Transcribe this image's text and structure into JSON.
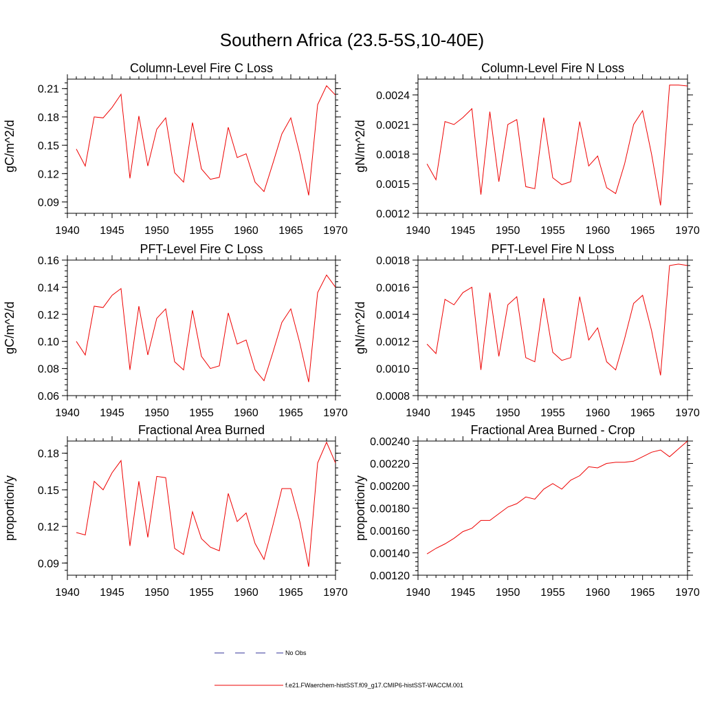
{
  "figure": {
    "title": "Southern Africa (23.5-5S,10-40E)",
    "legend": [
      {
        "label": "No Obs",
        "color": "#333399",
        "style": "dashed"
      },
      {
        "label": "f.e21.FWaerchem-histSST.f09_g17.CMIP6-histSST-WACCM.001",
        "color": "#ee0000",
        "style": "solid"
      }
    ]
  },
  "chart_data": [
    {
      "type": "line",
      "title": "Column-Level Fire C Loss",
      "xlabel": "",
      "ylabel": "gC/m^2/d",
      "xlim": [
        1940,
        1970
      ],
      "ylim": [
        0.078,
        0.22
      ],
      "xticks": [
        1940,
        1945,
        1950,
        1955,
        1960,
        1965,
        1970
      ],
      "xtick_labels": [
        "1940",
        "1945",
        "1950",
        "1955",
        "1960",
        "1965",
        "1970"
      ],
      "yticks": [
        0.09,
        0.12,
        0.15,
        0.18,
        0.21
      ],
      "ytick_labels": [
        "0.09",
        "0.12",
        "0.15",
        "0.18",
        "0.21"
      ],
      "series": [
        {
          "color": "#ee0000",
          "x": [
            1941,
            1942,
            1943,
            1944,
            1945,
            1946,
            1947,
            1948,
            1949,
            1950,
            1951,
            1952,
            1953,
            1954,
            1955,
            1956,
            1957,
            1958,
            1959,
            1960,
            1961,
            1962,
            1963,
            1964,
            1965,
            1966,
            1967,
            1968,
            1969,
            1970
          ],
          "y": [
            0.146,
            0.128,
            0.18,
            0.179,
            0.19,
            0.204,
            0.115,
            0.181,
            0.128,
            0.167,
            0.179,
            0.121,
            0.111,
            0.174,
            0.125,
            0.114,
            0.116,
            0.169,
            0.137,
            0.141,
            0.111,
            0.101,
            0.131,
            0.162,
            0.179,
            0.141,
            0.097,
            0.193,
            0.213,
            0.203
          ]
        }
      ]
    },
    {
      "type": "line",
      "title": "Column-Level Fire N Loss",
      "xlabel": "",
      "ylabel": "gN/m^2/d",
      "xlim": [
        1940,
        1970
      ],
      "ylim": [
        0.0012,
        0.00256
      ],
      "xticks": [
        1940,
        1945,
        1950,
        1955,
        1960,
        1965,
        1970
      ],
      "xtick_labels": [
        "1940",
        "1945",
        "1950",
        "1955",
        "1960",
        "1965",
        "1970"
      ],
      "yticks": [
        0.0012,
        0.0015,
        0.0018,
        0.0021,
        0.0024
      ],
      "ytick_labels": [
        "0.0012",
        "0.0015",
        "0.0018",
        "0.0021",
        "0.0024"
      ],
      "series": [
        {
          "color": "#ee0000",
          "x": [
            1941,
            1942,
            1943,
            1944,
            1945,
            1946,
            1947,
            1948,
            1949,
            1950,
            1951,
            1952,
            1953,
            1954,
            1955,
            1956,
            1957,
            1958,
            1959,
            1960,
            1961,
            1962,
            1963,
            1964,
            1965,
            1966,
            1967,
            1968,
            1969,
            1970
          ],
          "y": [
            0.0017,
            0.00154,
            0.00213,
            0.0021,
            0.00217,
            0.00226,
            0.00139,
            0.00223,
            0.00152,
            0.0021,
            0.00215,
            0.00147,
            0.00145,
            0.00217,
            0.00156,
            0.00149,
            0.00152,
            0.00213,
            0.00168,
            0.00178,
            0.00146,
            0.0014,
            0.0017,
            0.0021,
            0.00224,
            0.0018,
            0.00128,
            0.0025,
            0.0025,
            0.00249
          ]
        }
      ]
    },
    {
      "type": "line",
      "title": "PFT-Level Fire C Loss",
      "xlabel": "",
      "ylabel": "gC/m^2/d",
      "xlim": [
        1940,
        1970
      ],
      "ylim": [
        0.06,
        0.16
      ],
      "xticks": [
        1940,
        1945,
        1950,
        1955,
        1960,
        1965,
        1970
      ],
      "xtick_labels": [
        "1940",
        "1945",
        "1950",
        "1955",
        "1960",
        "1965",
        "1970"
      ],
      "yticks": [
        0.06,
        0.08,
        0.1,
        0.12,
        0.14,
        0.16
      ],
      "ytick_labels": [
        "0.06",
        "0.08",
        "0.10",
        "0.12",
        "0.14",
        "0.16"
      ],
      "series": [
        {
          "color": "#ee0000",
          "x": [
            1941,
            1942,
            1943,
            1944,
            1945,
            1946,
            1947,
            1948,
            1949,
            1950,
            1951,
            1952,
            1953,
            1954,
            1955,
            1956,
            1957,
            1958,
            1959,
            1960,
            1961,
            1962,
            1963,
            1964,
            1965,
            1966,
            1967,
            1968,
            1969,
            1970
          ],
          "y": [
            0.1,
            0.09,
            0.126,
            0.125,
            0.134,
            0.139,
            0.079,
            0.126,
            0.09,
            0.117,
            0.124,
            0.085,
            0.079,
            0.123,
            0.089,
            0.08,
            0.082,
            0.121,
            0.098,
            0.101,
            0.079,
            0.071,
            0.092,
            0.114,
            0.124,
            0.099,
            0.07,
            0.136,
            0.149,
            0.14
          ]
        }
      ]
    },
    {
      "type": "line",
      "title": "PFT-Level Fire N Loss",
      "xlabel": "",
      "ylabel": "gN/m^2/d",
      "xlim": [
        1940,
        1970
      ],
      "ylim": [
        0.0008,
        0.0018
      ],
      "xticks": [
        1940,
        1945,
        1950,
        1955,
        1960,
        1965,
        1970
      ],
      "xtick_labels": [
        "1940",
        "1945",
        "1950",
        "1955",
        "1960",
        "1965",
        "1970"
      ],
      "yticks": [
        0.0008,
        0.001,
        0.0012,
        0.0014,
        0.0016,
        0.0018
      ],
      "ytick_labels": [
        "0.0008",
        "0.0010",
        "0.0012",
        "0.0014",
        "0.0016",
        "0.0018"
      ],
      "series": [
        {
          "color": "#ee0000",
          "x": [
            1941,
            1942,
            1943,
            1944,
            1945,
            1946,
            1947,
            1948,
            1949,
            1950,
            1951,
            1952,
            1953,
            1954,
            1955,
            1956,
            1957,
            1958,
            1959,
            1960,
            1961,
            1962,
            1963,
            1964,
            1965,
            1966,
            1967,
            1968,
            1969,
            1970
          ],
          "y": [
            0.00118,
            0.00111,
            0.00151,
            0.00147,
            0.00156,
            0.0016,
            0.00099,
            0.00156,
            0.00109,
            0.00147,
            0.00153,
            0.00108,
            0.00105,
            0.00152,
            0.00112,
            0.00106,
            0.00108,
            0.00153,
            0.00121,
            0.0013,
            0.00105,
            0.00099,
            0.00122,
            0.00148,
            0.00154,
            0.00128,
            0.00095,
            0.00176,
            0.00177,
            0.00176
          ]
        }
      ]
    },
    {
      "type": "line",
      "title": "Fractional Area Burned",
      "xlabel": "",
      "ylabel": "proportion/y",
      "xlim": [
        1940,
        1970
      ],
      "ylim": [
        0.08,
        0.19
      ],
      "xticks": [
        1940,
        1945,
        1950,
        1955,
        1960,
        1965,
        1970
      ],
      "xtick_labels": [
        "1940",
        "1945",
        "1950",
        "1955",
        "1960",
        "1965",
        "1970"
      ],
      "yticks": [
        0.09,
        0.12,
        0.15,
        0.18
      ],
      "ytick_labels": [
        "0.09",
        "0.12",
        "0.15",
        "0.18"
      ],
      "series": [
        {
          "color": "#ee0000",
          "x": [
            1941,
            1942,
            1943,
            1944,
            1945,
            1946,
            1947,
            1948,
            1949,
            1950,
            1951,
            1952,
            1953,
            1954,
            1955,
            1956,
            1957,
            1958,
            1959,
            1960,
            1961,
            1962,
            1963,
            1964,
            1965,
            1966,
            1967,
            1968,
            1969,
            1970
          ],
          "y": [
            0.115,
            0.113,
            0.157,
            0.15,
            0.164,
            0.174,
            0.104,
            0.157,
            0.111,
            0.161,
            0.16,
            0.102,
            0.097,
            0.132,
            0.11,
            0.103,
            0.1,
            0.147,
            0.124,
            0.131,
            0.106,
            0.093,
            0.121,
            0.151,
            0.151,
            0.124,
            0.087,
            0.172,
            0.189,
            0.172
          ]
        }
      ]
    },
    {
      "type": "line",
      "title": "Fractional Area Burned - Crop",
      "xlabel": "",
      "ylabel": "proportion/y",
      "xlim": [
        1940,
        1970
      ],
      "ylim": [
        0.0012,
        0.0024
      ],
      "xticks": [
        1940,
        1945,
        1950,
        1955,
        1960,
        1965,
        1970
      ],
      "xtick_labels": [
        "1940",
        "1945",
        "1950",
        "1955",
        "1960",
        "1965",
        "1970"
      ],
      "yticks": [
        0.0012,
        0.0014,
        0.0016,
        0.0018,
        0.002,
        0.0022,
        0.0024
      ],
      "ytick_labels": [
        "0.00120",
        "0.00140",
        "0.00160",
        "0.00180",
        "0.00200",
        "0.00220",
        "0.00240"
      ],
      "series": [
        {
          "color": "#ee0000",
          "x": [
            1941,
            1942,
            1943,
            1944,
            1945,
            1946,
            1947,
            1948,
            1949,
            1950,
            1951,
            1952,
            1953,
            1954,
            1955,
            1956,
            1957,
            1958,
            1959,
            1960,
            1961,
            1962,
            1963,
            1964,
            1965,
            1966,
            1967,
            1968,
            1969,
            1970
          ],
          "y": [
            0.00139,
            0.00144,
            0.00148,
            0.00153,
            0.00159,
            0.00162,
            0.00169,
            0.00169,
            0.00175,
            0.00181,
            0.00184,
            0.0019,
            0.00188,
            0.00197,
            0.00202,
            0.00197,
            0.00205,
            0.00209,
            0.00217,
            0.00216,
            0.0022,
            0.00221,
            0.00221,
            0.00222,
            0.00226,
            0.0023,
            0.00232,
            0.00226,
            0.00233,
            0.0024
          ]
        }
      ]
    }
  ]
}
